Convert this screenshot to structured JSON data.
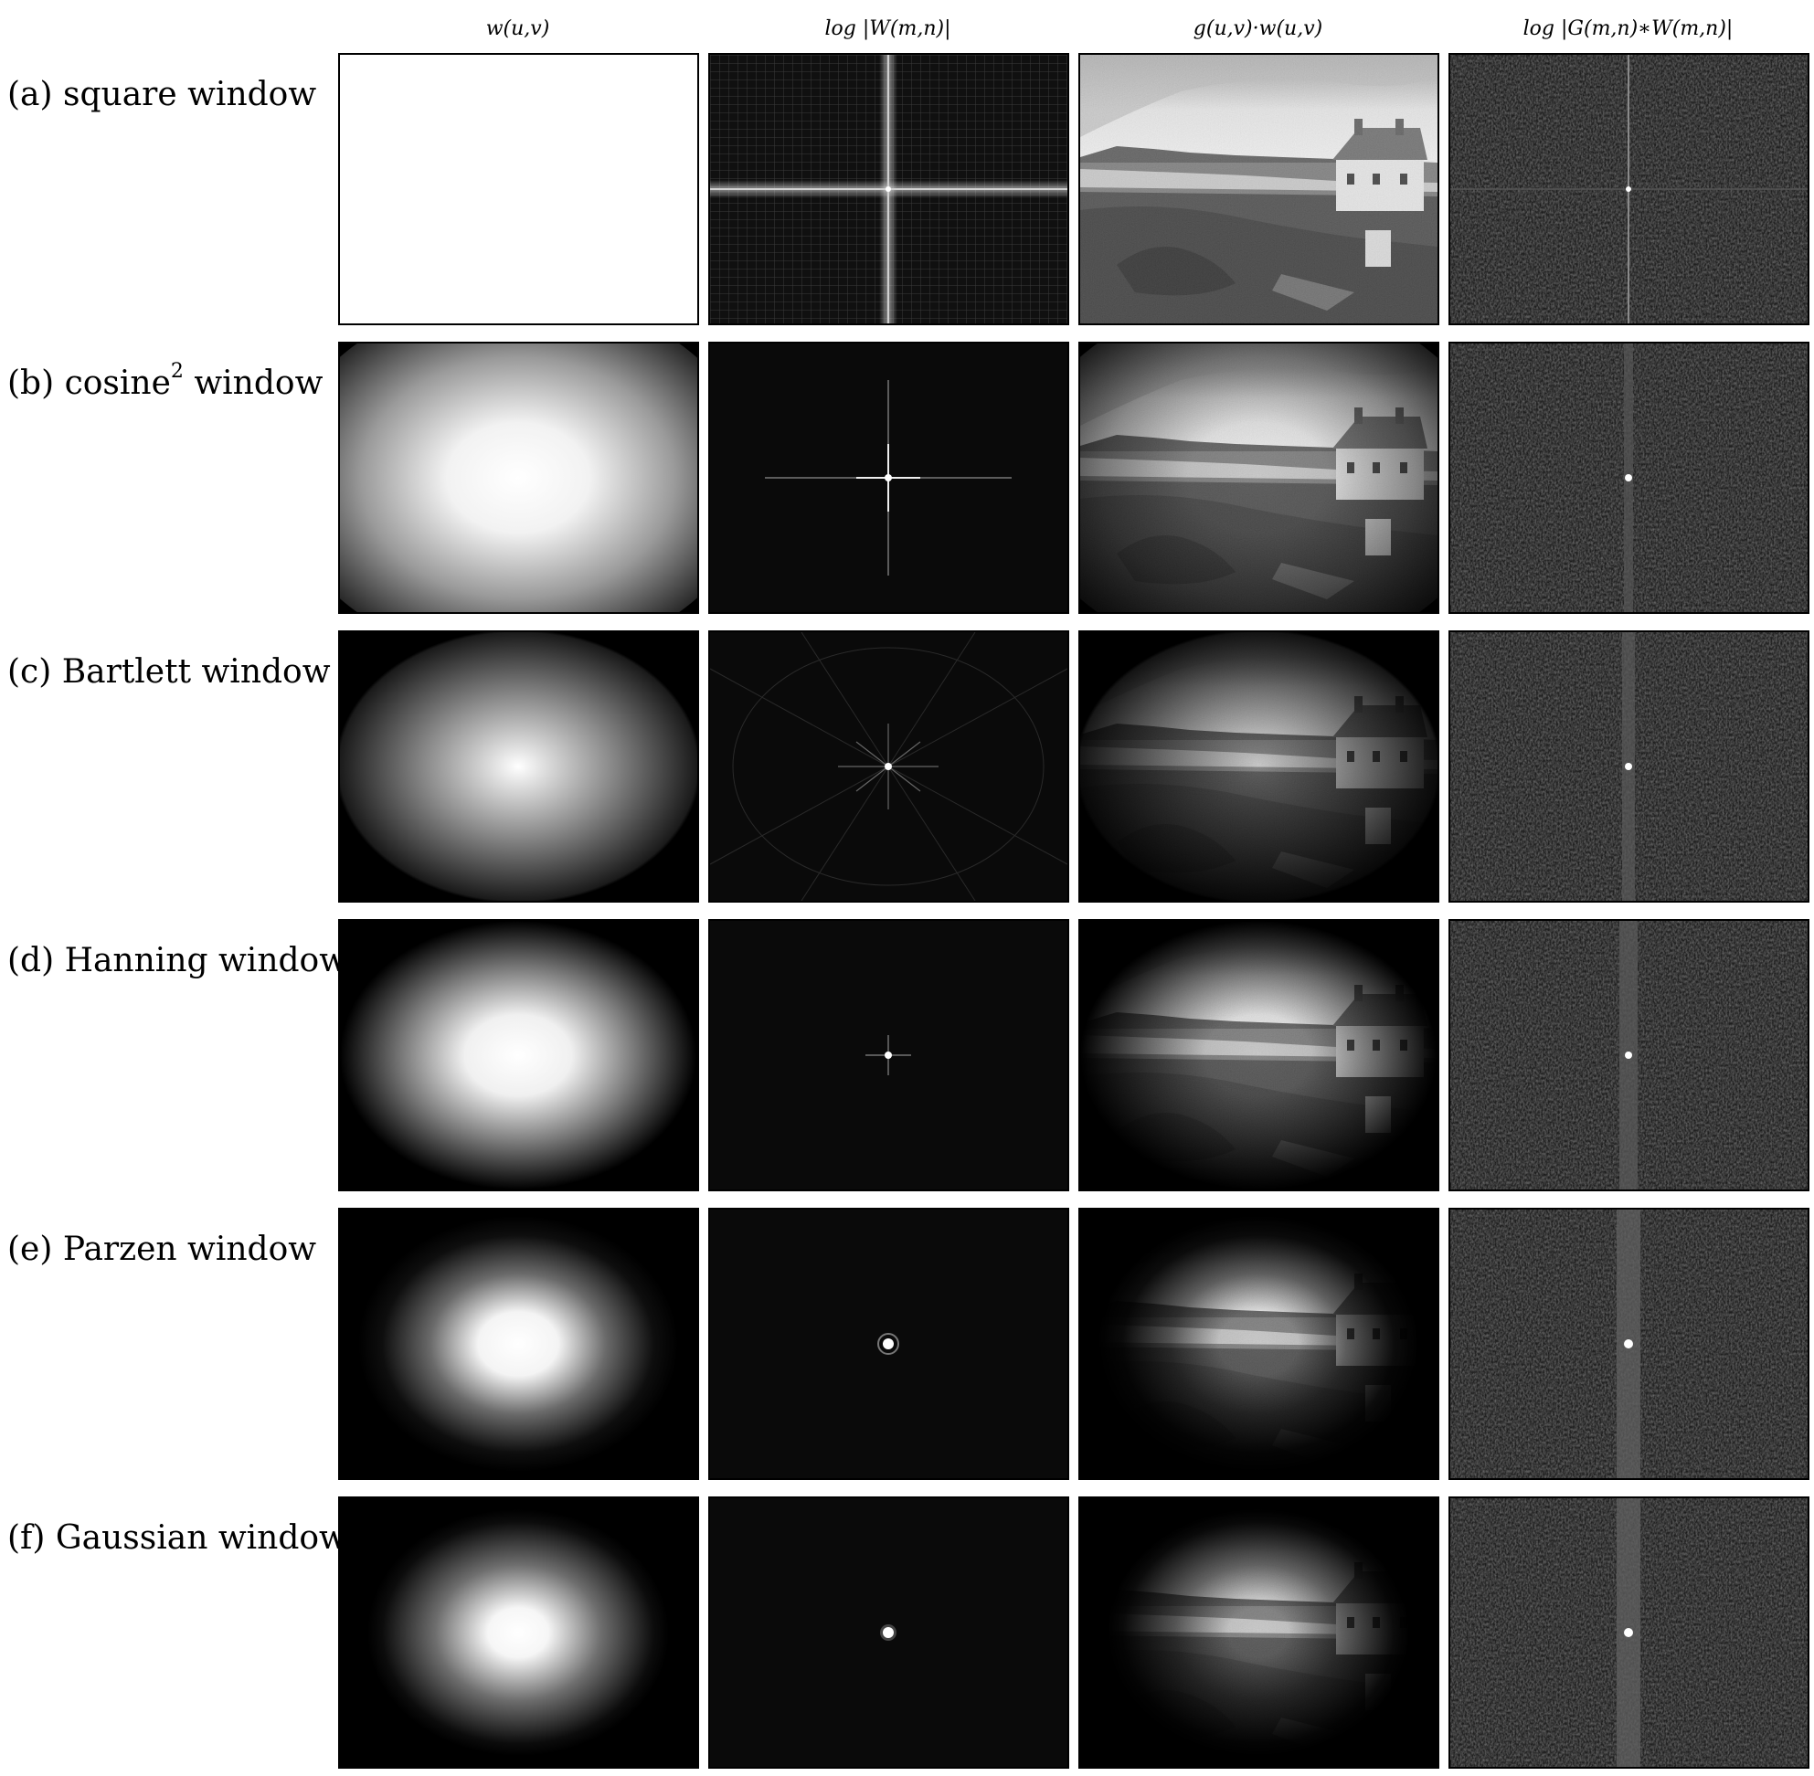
{
  "figure": {
    "column_headers": [
      "w(u,v)",
      "log |W(m,n)|",
      "g(u,v)·w(u,v)",
      "log |G(m,n)∗W(m,n)|"
    ],
    "rows": [
      {
        "prefix": "(a) square window",
        "superscript": "",
        "suffix": ""
      },
      {
        "prefix": "(b) cosine",
        "superscript": "2",
        "suffix": " window"
      },
      {
        "prefix": "(c) Bartlett window",
        "superscript": "",
        "suffix": ""
      },
      {
        "prefix": "(d) Hanning window",
        "superscript": "",
        "suffix": ""
      },
      {
        "prefix": "(e) Parzen window",
        "superscript": "",
        "suffix": ""
      },
      {
        "prefix": "(f) Gaussian window",
        "superscript": "",
        "suffix": ""
      }
    ]
  }
}
